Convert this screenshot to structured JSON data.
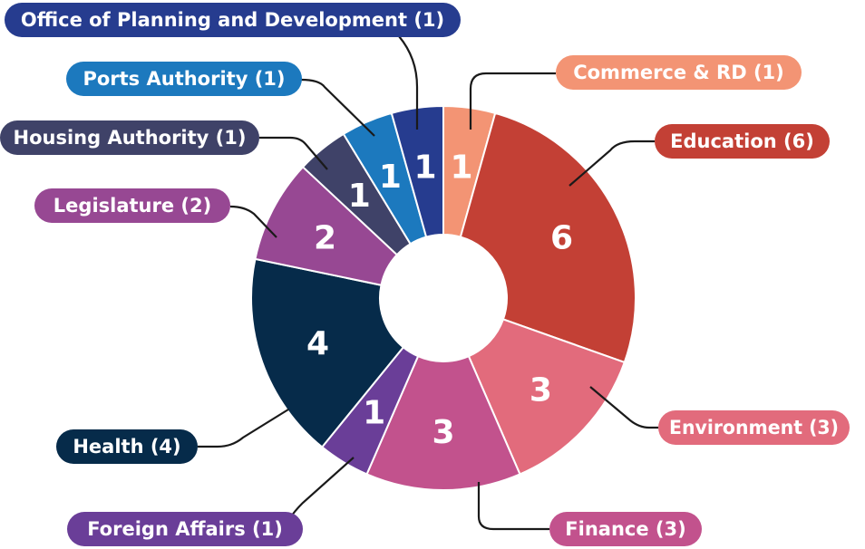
{
  "chart_data": {
    "type": "pie",
    "variant": "donut",
    "slices": [
      {
        "label": "Commerce & RD (1)",
        "value": 1,
        "value_label": "1",
        "color": "#f39474"
      },
      {
        "label": "Education (6)",
        "value": 6,
        "value_label": "6",
        "color": "#c34035"
      },
      {
        "label": "Environment (3)",
        "value": 3,
        "value_label": "3",
        "color": "#e26b7c"
      },
      {
        "label": "Finance (3)",
        "value": 3,
        "value_label": "3",
        "color": "#c2528d"
      },
      {
        "label": "Foreign Affairs (1)",
        "value": 1,
        "value_label": "1",
        "color": "#6a3e98"
      },
      {
        "label": "Health (4)",
        "value": 4,
        "value_label": "4",
        "color": "#062b4a"
      },
      {
        "label": "Legislature (2)",
        "value": 2,
        "value_label": "2",
        "color": "#974893"
      },
      {
        "label": "Housing Authority (1)",
        "value": 1,
        "value_label": "1",
        "color": "#3f4268"
      },
      {
        "label": "Ports Authority (1)",
        "value": 1,
        "value_label": "1",
        "color": "#1c79be"
      },
      {
        "label": "Office of Planning and Development (1)",
        "value": 1,
        "value_label": "1",
        "color": "#263c8f"
      }
    ],
    "legend": "callout-labels"
  }
}
